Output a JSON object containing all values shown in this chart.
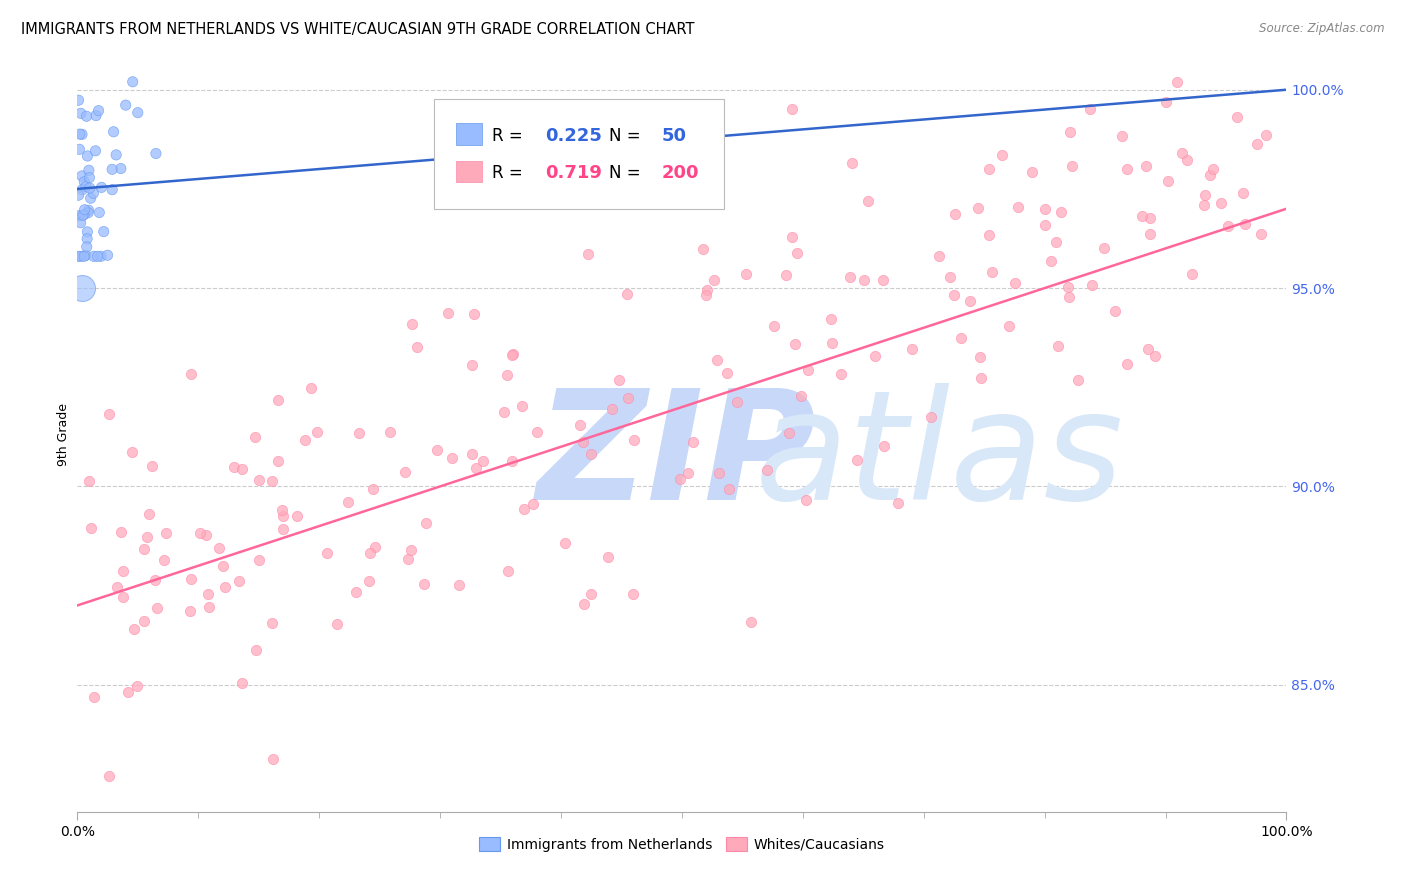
{
  "title": "IMMIGRANTS FROM NETHERLANDS VS WHITE/CAUCASIAN 9TH GRADE CORRELATION CHART",
  "source": "Source: ZipAtlas.com",
  "ylabel": "9th Grade",
  "legend_blue_r": "0.225",
  "legend_blue_n": "50",
  "legend_pink_r": "0.719",
  "legend_pink_n": "200",
  "legend_label_blue": "Immigrants from Netherlands",
  "legend_label_pink": "Whites/Caucasians",
  "blue_color": "#99BBFF",
  "blue_edge_color": "#6699EE",
  "pink_color": "#FFAABB",
  "pink_edge_color": "#FF88AA",
  "blue_line_color": "#3366CC",
  "pink_line_color": "#FF6699",
  "r_n_color": "#3366DD",
  "pink_r_n_color": "#FF4488",
  "ytick_color": "#4466EE",
  "watermark_zip_color": "#C8D8F8",
  "watermark_atlas_color": "#D8E8F8",
  "xlim": [
    0.0,
    1.0
  ],
  "ylim": [
    0.818,
    1.008
  ],
  "yticks": [
    1.0,
    0.95,
    0.9,
    0.85
  ],
  "ytick_labels": [
    "100.0%",
    "95.0%",
    "90.0%",
    "85.0%"
  ],
  "grid_color": "#CCCCCC",
  "background_color": "#FFFFFF",
  "title_fontsize": 10.5,
  "tick_label_fontsize": 9,
  "legend_fontsize": 12
}
